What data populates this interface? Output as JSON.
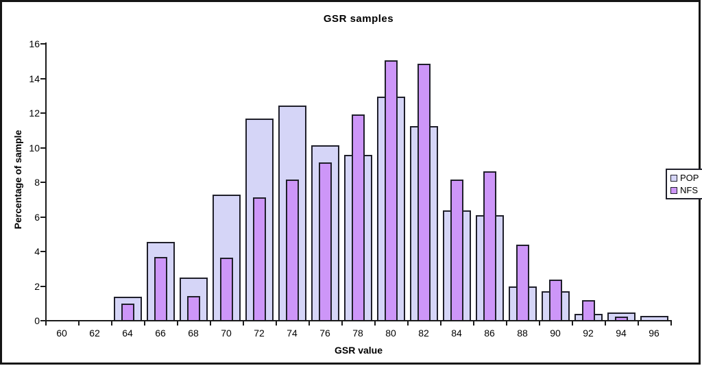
{
  "window": {
    "background": "#ffffff",
    "frame_border_color": "#161616"
  },
  "chart_data": {
    "type": "bar",
    "title": "GSR samples",
    "xlabel": "GSR value",
    "ylabel": "Percentage of sample",
    "categories": [
      60,
      62,
      64,
      66,
      68,
      70,
      72,
      74,
      76,
      78,
      80,
      82,
      84,
      86,
      88,
      90,
      92,
      94,
      96
    ],
    "series": [
      {
        "name": "POP",
        "color": "#d5d5f7",
        "values": [
          0,
          0,
          1.35,
          4.5,
          2.45,
          7.25,
          11.65,
          12.4,
          10.1,
          9.55,
          12.9,
          11.2,
          6.35,
          6.05,
          1.95,
          1.65,
          0.35,
          0.45,
          0.25
        ]
      },
      {
        "name": "NFS",
        "color": "#cd96f8",
        "values": [
          0,
          0,
          0.95,
          3.65,
          1.4,
          3.6,
          7.1,
          8.1,
          9.1,
          11.9,
          15.0,
          14.8,
          8.1,
          8.6,
          4.35,
          2.35,
          1.15,
          0.2,
          0
        ]
      }
    ],
    "ylim": [
      0,
      16
    ],
    "yticks": [
      0,
      2,
      4,
      6,
      8,
      10,
      12,
      14,
      16
    ],
    "grid": false,
    "legend_position": "right",
    "bar_style": "overlapped",
    "bar_border_color": "#1f1f2a",
    "axis_color": "#1a1a1a"
  }
}
